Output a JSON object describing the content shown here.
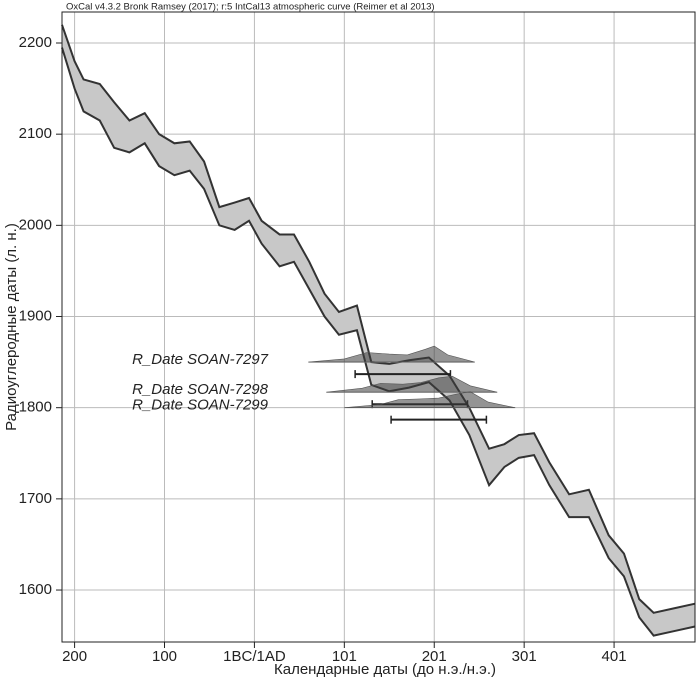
{
  "chart_data": {
    "type": "band",
    "title": "OxCal v4.3.2 Bronk Ramsey (2017); r:5 IntCal13 atmospheric curve (Reimer et al 2013)",
    "x_label": "Календарные даты (до н.э./н.э.)",
    "y_label": "Радиоуглеродные даты (л. н.)",
    "xlim": [
      -214,
      490
    ],
    "ylim": [
      1543,
      2234
    ],
    "xticks": [
      {
        "value": -200,
        "label": "200"
      },
      {
        "value": -100,
        "label": "100"
      },
      {
        "value": 0,
        "label": "1BC/1AD"
      },
      {
        "value": 100,
        "label": "101"
      },
      {
        "value": 200,
        "label": "201"
      },
      {
        "value": 300,
        "label": "301"
      },
      {
        "value": 400,
        "label": "401"
      }
    ],
    "yticks": [
      1600,
      1700,
      1800,
      1900,
      2000,
      2100,
      2200
    ],
    "grid": true,
    "x": [
      -214,
      -200,
      -190,
      -172,
      -156,
      -139,
      -122,
      -106,
      -89,
      -72,
      -56,
      -39,
      -22,
      -6,
      8,
      28,
      44,
      61,
      78,
      94,
      114,
      130,
      150,
      172,
      194,
      217,
      239,
      261,
      278,
      294,
      311,
      328,
      350,
      372,
      394,
      411,
      428,
      444,
      467,
      490
    ],
    "series": [
      {
        "color": "#333333",
        "fill": "#c8c8c8",
        "values": [
          2220,
          2180,
          2160,
          2155,
          2135,
          2115,
          2123,
          2100,
          2090,
          2092,
          2070,
          2020,
          2025,
          2030,
          2005,
          1990,
          1990,
          1960,
          1925,
          1905,
          1912,
          1850,
          1848,
          1852,
          1855,
          1835,
          1800,
          1755,
          1760,
          1770,
          1772,
          1740,
          1705,
          1710,
          1660,
          1640,
          1590,
          1575,
          1580,
          1585
        ]
      },
      {
        "color": "#333333",
        "values": [
          2195,
          2150,
          2125,
          2115,
          2085,
          2080,
          2090,
          2065,
          2055,
          2060,
          2040,
          2000,
          1995,
          2005,
          1980,
          1955,
          1960,
          1930,
          1900,
          1880,
          1885,
          1825,
          1818,
          1822,
          1828,
          1808,
          1770,
          1715,
          1735,
          1745,
          1748,
          1715,
          1680,
          1680,
          1635,
          1615,
          1570,
          1550,
          1555,
          1560
        ]
      }
    ],
    "r_dates": [
      {
        "name": "R_Date SOAN-7297",
        "bp": 1850,
        "range": [
          112,
          218
        ],
        "prob_x": [
          60,
          100,
          125,
          150,
          170,
          190,
          200,
          215,
          245
        ],
        "prob": [
          0,
          0.2,
          0.6,
          0.5,
          0.45,
          0.8,
          1,
          0.45,
          0
        ]
      },
      {
        "name": "R_Date SOAN-7298",
        "bp": 1817,
        "range": [
          131,
          237
        ],
        "prob_x": [
          80,
          120,
          140,
          165,
          185,
          205,
          220,
          240,
          270
        ],
        "prob": [
          0,
          0.25,
          0.55,
          0.5,
          0.6,
          0.9,
          1,
          0.4,
          0
        ]
      },
      {
        "name": "R_Date SOAN-7299",
        "bp": 1800,
        "range": [
          152,
          258
        ],
        "prob_x": [
          100,
          140,
          160,
          185,
          205,
          225,
          240,
          260,
          290
        ],
        "prob": [
          0,
          0.2,
          0.5,
          0.55,
          0.6,
          0.85,
          1,
          0.35,
          0
        ]
      }
    ]
  }
}
